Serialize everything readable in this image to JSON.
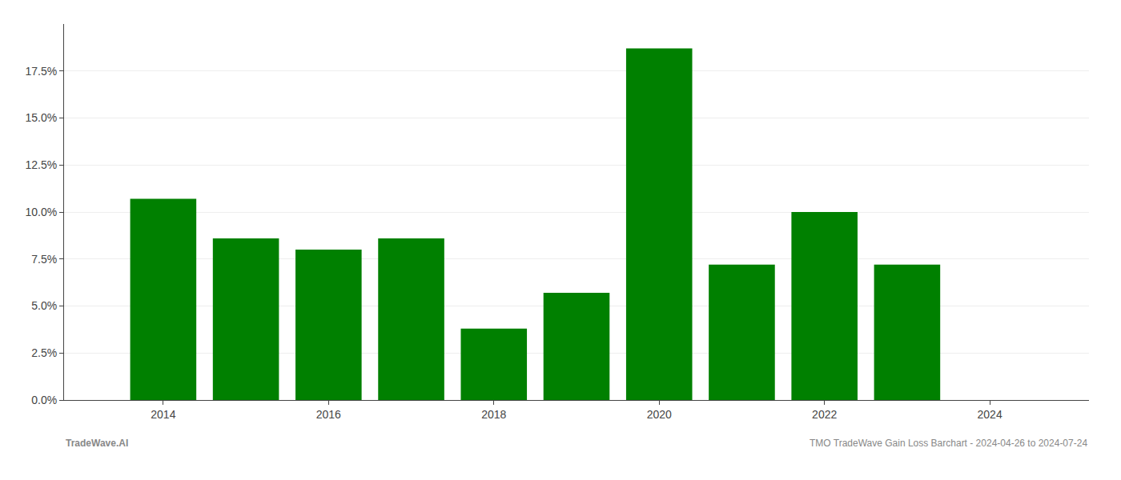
{
  "chart_data": {
    "type": "bar",
    "x": [
      2014,
      2015,
      2016,
      2017,
      2018,
      2019,
      2020,
      2021,
      2022,
      2023
    ],
    "values": [
      0.107,
      0.086,
      0.08,
      0.086,
      0.038,
      0.057,
      0.187,
      0.072,
      0.1,
      0.072
    ],
    "color": "#008000",
    "xlim": [
      2012.8,
      2025.2
    ],
    "xticks": [
      2014,
      2016,
      2018,
      2020,
      2022,
      2024
    ],
    "ylim": [
      0,
      0.2
    ],
    "yticks": [
      {
        "value": 0.0,
        "label": "0.0%"
      },
      {
        "value": 0.025,
        "label": "2.5%"
      },
      {
        "value": 0.05,
        "label": "5.0%"
      },
      {
        "value": 0.075,
        "label": "7.5%"
      },
      {
        "value": 0.1,
        "label": "10.0%"
      },
      {
        "value": 0.125,
        "label": "12.5%"
      },
      {
        "value": 0.15,
        "label": "15.0%"
      },
      {
        "value": 0.175,
        "label": "17.5%"
      }
    ],
    "grid": true,
    "annotations": [
      "TradeWave.AI",
      "TMO TradeWave Gain Loss Barchart - 2024-04-26 to 2024-07-24"
    ]
  }
}
